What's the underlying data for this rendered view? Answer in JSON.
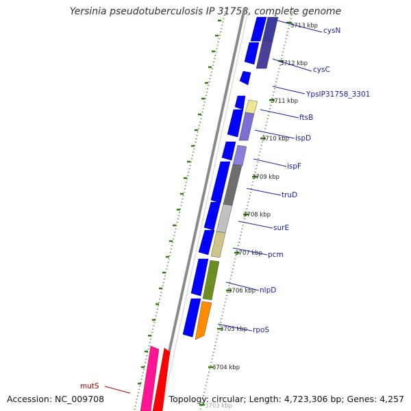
{
  "title": "Yersinia pseudotuberculosis IP 31758, complete genome",
  "footer": {
    "accession": "Accession: NC_009708",
    "topology": "Topology: circular; Length: 4,723,306 bp; Genes: 4,257"
  },
  "colors": {
    "backbone": "#8a8a8a",
    "tick": "#2d7a0a",
    "label": "#1a1aa8",
    "label_other": "#b30000",
    "cds_plus": "#0000ff"
  },
  "ticks": [
    "3713 kbp",
    "3712 kbp",
    "3711 kbp",
    "3710 kbp",
    "3709 kbp",
    "3708 kbp",
    "3707 kbp",
    "3706 kbp",
    "3705 kbp",
    "3704 kbp",
    "3703 kbp"
  ],
  "genes": [
    {
      "name": "cysN",
      "color": "#3b3b9e"
    },
    {
      "name": "cysC",
      "color": "#4a3f99"
    },
    {
      "name": "YpsIP31758_3301",
      "color": "#0000ff"
    },
    {
      "name": "ftsB",
      "color": "#efe59a"
    },
    {
      "name": "ispD",
      "color": "#7b6fd4"
    },
    {
      "name": "ispF",
      "color": "#8a7fd8"
    },
    {
      "name": "truD",
      "color": "#6e6e6e"
    },
    {
      "name": "surE",
      "color": "#c0c0c0"
    },
    {
      "name": "pcm",
      "color": "#cdc58a"
    },
    {
      "name": "nlpD",
      "color": "#6b8e23"
    },
    {
      "name": "rpoS",
      "color": "#ff8c00"
    },
    {
      "name": "mutS",
      "color": "#ff0000"
    }
  ]
}
